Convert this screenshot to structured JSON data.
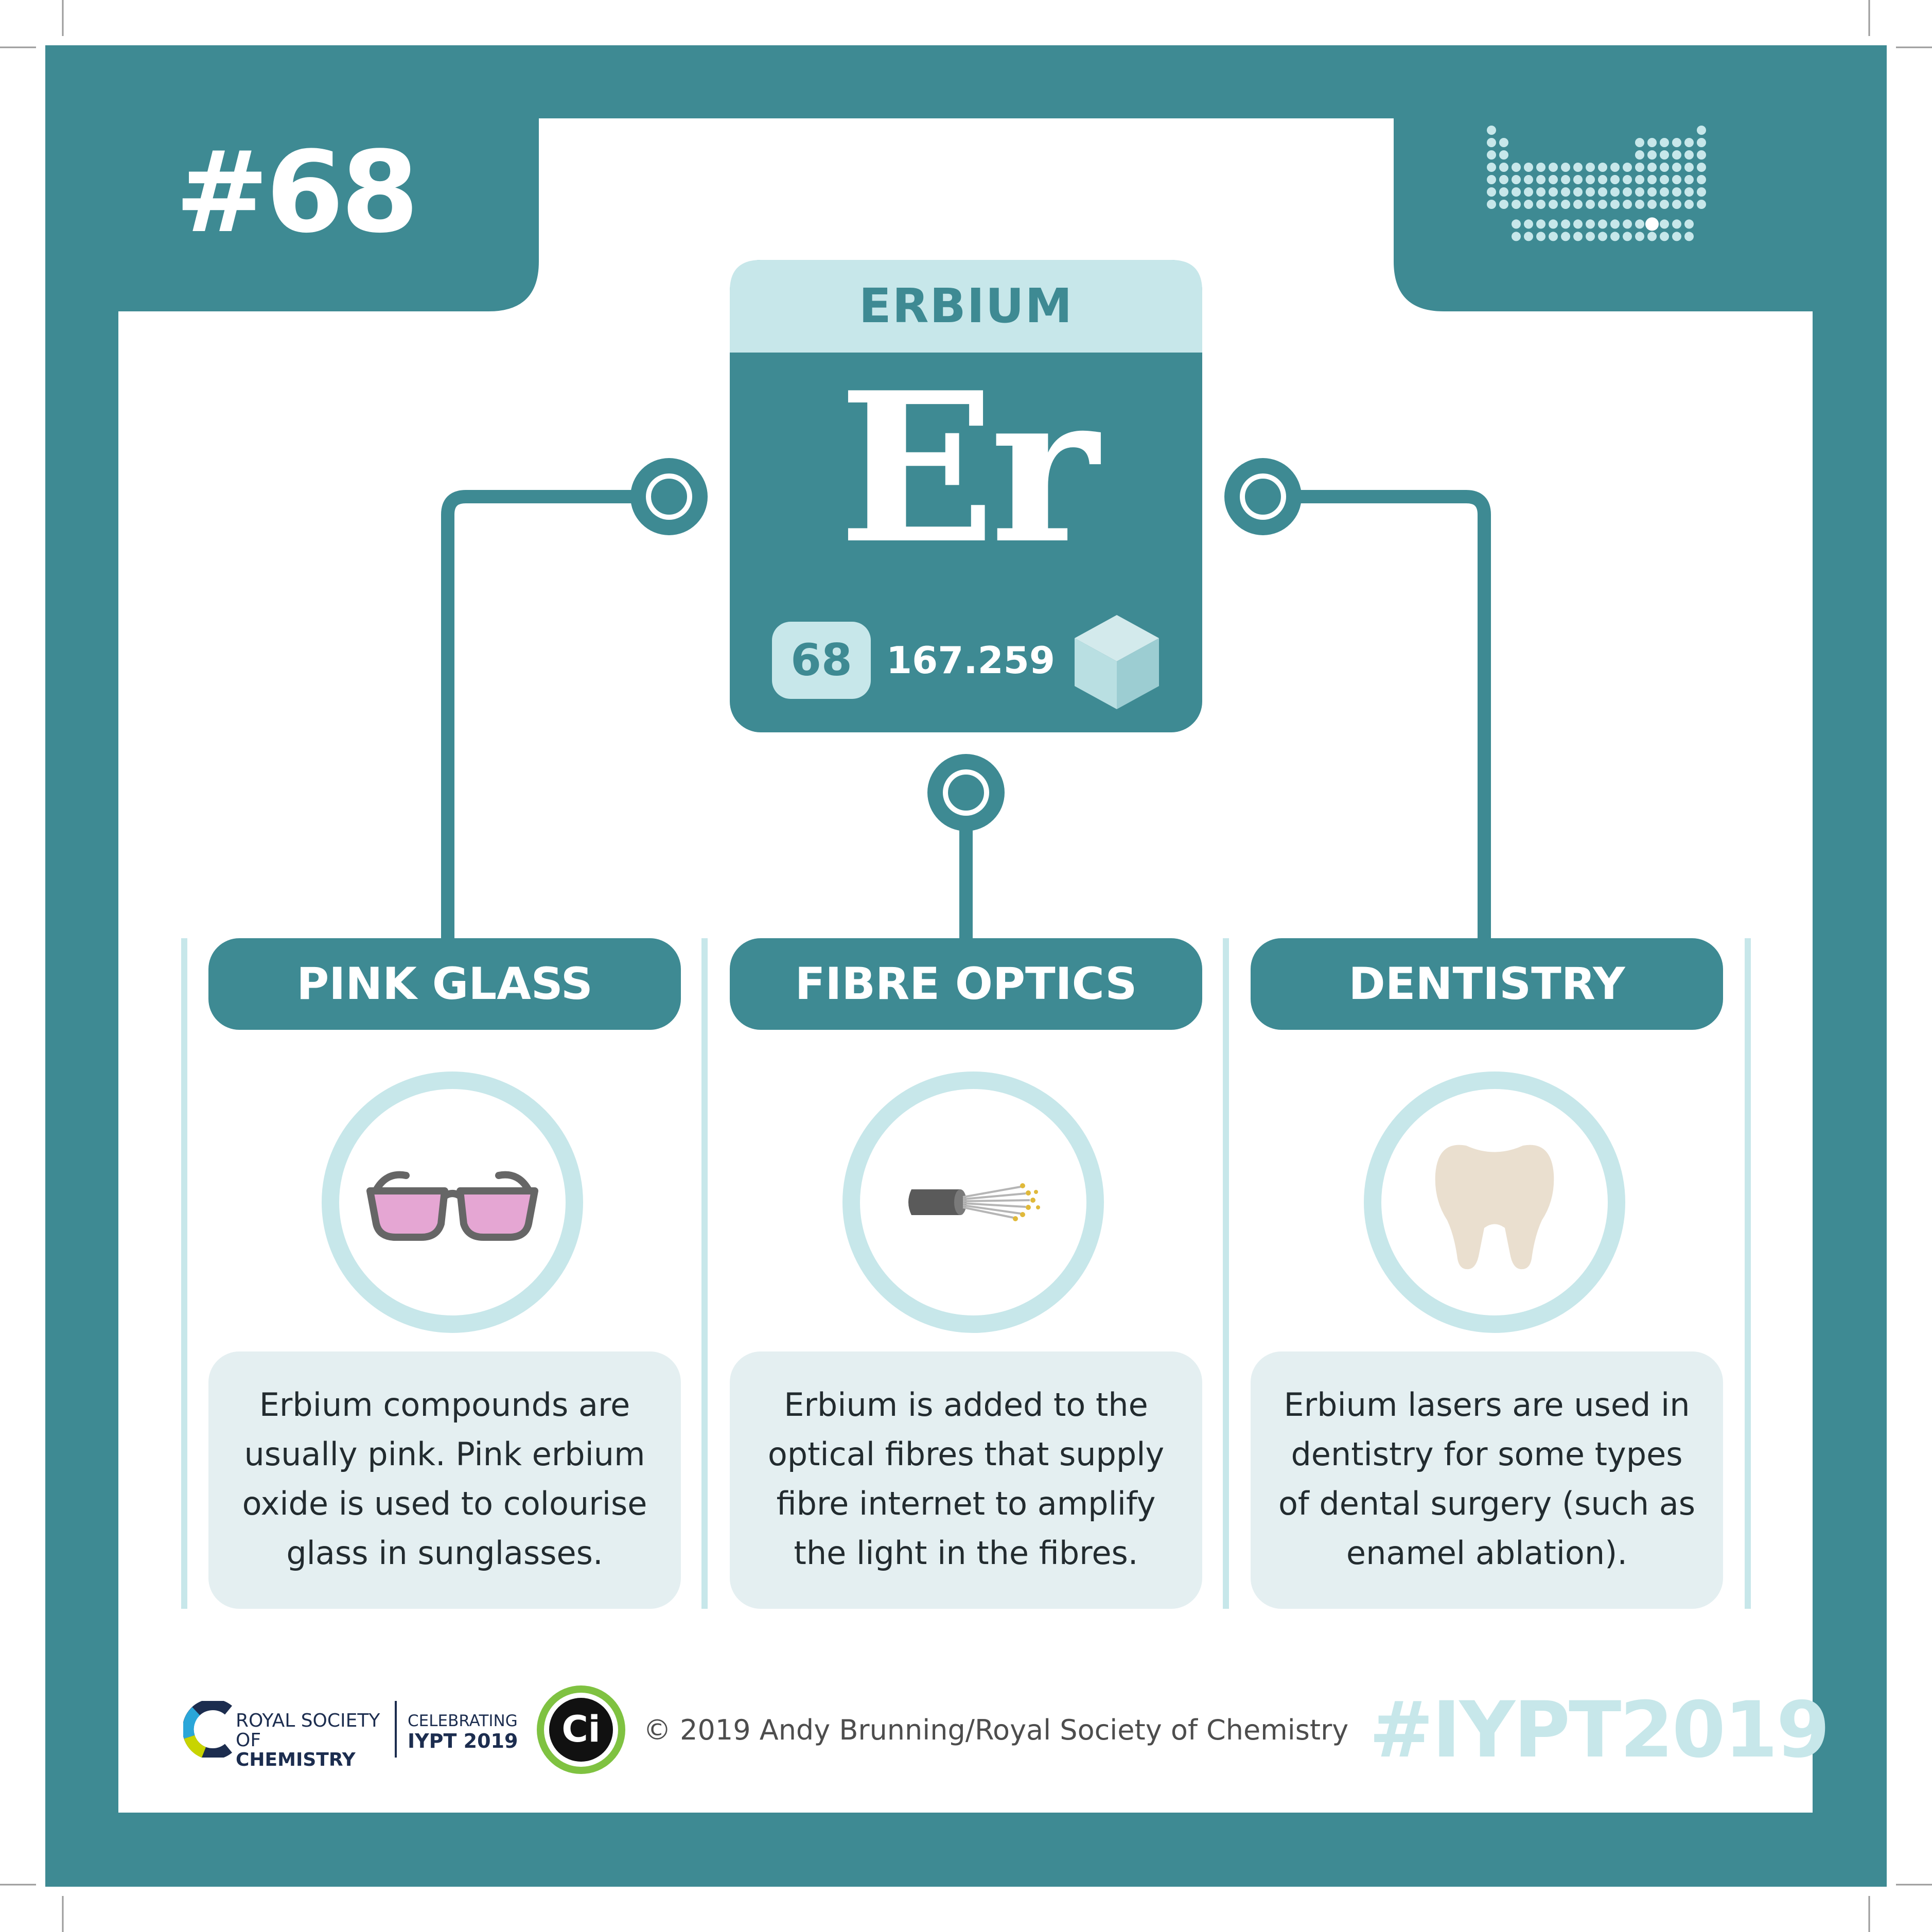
{
  "card": {
    "issue_number": "#68",
    "element": {
      "name": "ERBIUM",
      "symbol": "Er",
      "atomic_number": "68",
      "atomic_mass": "167.259"
    },
    "uses": [
      {
        "title": "PINK GLASS",
        "icon": "sunglasses-icon",
        "description": "Erbium compounds are usually pink. Pink erbium oxide is used to colourise glass in sunglasses."
      },
      {
        "title": "FIBRE OPTICS",
        "icon": "fibre-optic-cable-icon",
        "description": "Erbium is added to the optical fibres that supply fibre internet to amplify the light in the fibres."
      },
      {
        "title": "DENTISTRY",
        "icon": "tooth-icon",
        "description": "Erbium lasers are used in dentistry for some types of dental surgery (such as enamel ablation)."
      }
    ]
  },
  "footer": {
    "rsc_line1": "ROYAL SOCIETY",
    "rsc_line2_prefix": "OF ",
    "rsc_line2_bold": "CHEMISTRY",
    "celebrating": "CELEBRATING",
    "iypt": "IYPT 2019",
    "ci_logo_text": "Ci",
    "copyright": "© 2019 Andy Brunning/Royal Society of Chemistry",
    "hashtag": "#IYPT2019"
  },
  "colors": {
    "teal": "#3e8a93",
    "light_teal": "#c7e7ea",
    "panel_grey": "#e4eff1",
    "lens_pink": "#e5a6d3",
    "tooth": "#eadfcf",
    "fibre_tip": "#e0b93a"
  },
  "icons": [
    "periodic-table-icon",
    "cube-icon",
    "connector-node-icon"
  ]
}
